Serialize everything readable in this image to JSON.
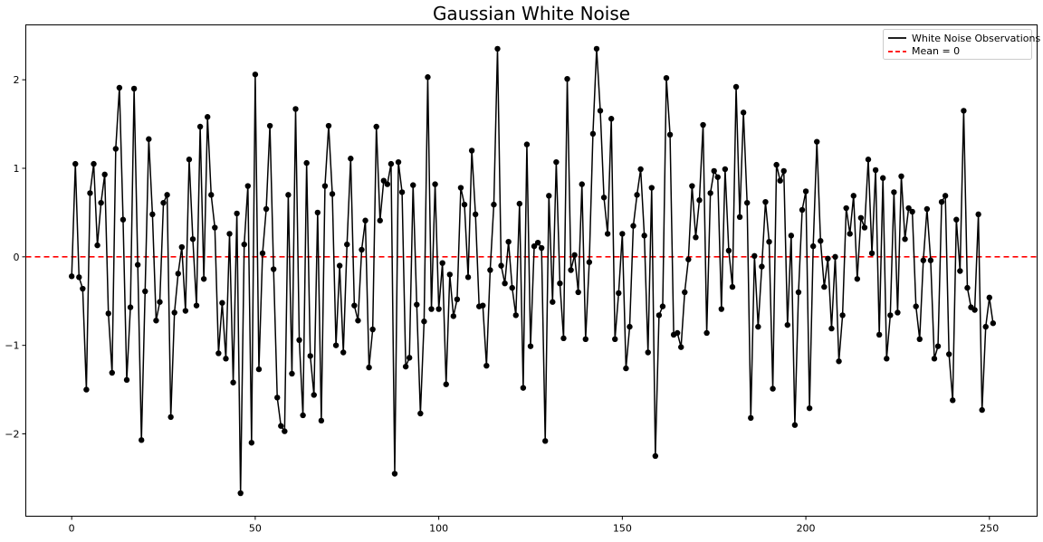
{
  "chart_data": {
    "type": "line",
    "title": "Gaussian White Noise",
    "xlabel": "",
    "ylabel": "",
    "xlim": [
      -12.5,
      263
    ],
    "ylim": [
      -2.93,
      2.62
    ],
    "xticks": [
      0,
      50,
      100,
      150,
      200,
      250
    ],
    "yticks": [
      -2,
      -1,
      0,
      1,
      2
    ],
    "xtick_labels": [
      "0",
      "50",
      "100",
      "150",
      "200",
      "250"
    ],
    "ytick_labels": [
      "−2",
      "−1",
      "0",
      "1",
      "2"
    ],
    "grid": false,
    "legend_position": "top-right",
    "series": [
      {
        "name": "White Noise Observations",
        "color": "#000000",
        "marker": "circle",
        "x_start": 0,
        "values": [
          -0.22,
          1.05,
          -0.23,
          -0.36,
          -1.5,
          0.72,
          1.05,
          0.13,
          0.61,
          0.93,
          -0.64,
          -1.31,
          1.22,
          1.91,
          0.42,
          -1.39,
          -0.57,
          1.9,
          -0.09,
          -2.07,
          -0.39,
          1.33,
          0.48,
          -0.72,
          -0.51,
          0.61,
          0.7,
          -1.81,
          -0.63,
          -0.19,
          0.11,
          -0.61,
          1.1,
          0.2,
          -0.55,
          1.47,
          -0.25,
          1.58,
          0.7,
          0.33,
          -1.09,
          -0.52,
          -1.15,
          0.26,
          -1.42,
          0.49,
          -2.67,
          0.14,
          0.8,
          -2.1,
          2.06,
          -1.27,
          0.04,
          0.54,
          1.48,
          -0.14,
          -1.59,
          -1.91,
          -1.97,
          0.7,
          -1.32,
          1.67,
          -0.94,
          -1.79,
          1.06,
          -1.12,
          -1.56,
          0.5,
          -1.85,
          0.8,
          1.48,
          0.71,
          -1.0,
          -0.1,
          -1.08,
          0.14,
          1.11,
          -0.55,
          -0.72,
          0.08,
          0.41,
          -1.25,
          -0.82,
          1.47,
          0.41,
          0.86,
          0.82,
          1.05,
          -2.45,
          1.07,
          0.73,
          -1.24,
          -1.14,
          0.81,
          -0.54,
          -1.77,
          -0.73,
          2.03,
          -0.59,
          0.82,
          -0.59,
          -0.07,
          -1.44,
          -0.2,
          -0.67,
          -0.48,
          0.78,
          0.59,
          -0.23,
          1.2,
          0.48,
          -0.56,
          -0.55,
          -1.23,
          -0.15,
          0.59,
          2.35,
          -0.1,
          -0.3,
          0.17,
          -0.35,
          -0.66,
          0.6,
          -1.48,
          1.27,
          -1.01,
          0.12,
          0.16,
          0.1,
          -2.08,
          0.69,
          -0.51,
          1.07,
          -0.3,
          -0.92,
          2.01,
          -0.15,
          0.02,
          -0.4,
          0.82,
          -0.93,
          -0.06,
          1.39,
          2.35,
          1.65,
          0.67,
          0.26,
          1.56,
          -0.93,
          -0.41,
          0.26,
          -1.26,
          -0.79,
          0.35,
          0.7,
          0.99,
          0.24,
          -1.08,
          0.78,
          -2.25,
          -0.66,
          -0.56,
          2.02,
          1.38,
          -0.88,
          -0.86,
          -1.02,
          -0.4,
          -0.03,
          0.8,
          0.22,
          0.64,
          1.49,
          -0.86,
          0.72,
          0.97,
          0.9,
          -0.59,
          0.99,
          0.07,
          -0.34,
          1.92,
          0.45,
          1.63,
          0.61,
          -1.82,
          0.01,
          -0.79,
          -0.11,
          0.62,
          0.17,
          -1.49,
          1.04,
          0.86,
          0.97,
          -0.77,
          0.24,
          -1.9,
          -0.4,
          0.53,
          0.74,
          -1.71,
          0.12,
          1.3,
          0.18,
          -0.34,
          -0.02,
          -0.81,
          0.0,
          -1.18,
          -0.66,
          0.55,
          0.26,
          0.69,
          -0.25,
          0.44,
          0.33,
          1.1,
          0.04,
          0.98,
          -0.88,
          0.89,
          -1.15,
          -0.66,
          0.73,
          -0.63,
          0.91,
          0.2,
          0.55,
          0.51,
          -0.56,
          -0.93,
          -0.04,
          0.54,
          -0.04,
          -1.15,
          -1.01,
          0.62,
          0.69,
          -1.1,
          -1.62,
          0.42,
          -0.16,
          1.65,
          -0.35,
          -0.57,
          -0.6,
          0.48,
          -1.73,
          -0.79,
          -0.46,
          -0.75
        ]
      },
      {
        "name": "Mean = 0",
        "color": "#ff0000",
        "style": "dashed",
        "value": 0
      }
    ]
  }
}
